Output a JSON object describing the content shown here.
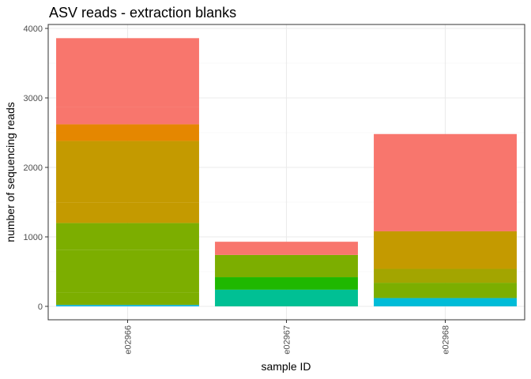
{
  "chart_data": {
    "type": "bar",
    "stacked": true,
    "title": "ASV reads - extraction blanks",
    "xlabel": "sample ID",
    "ylabel": "number of sequencing reads",
    "categories": [
      "e02966",
      "e02967",
      "e02968"
    ],
    "ylim": [
      0,
      4000
    ],
    "yticks": [
      "0",
      "1000",
      "2000",
      "3000",
      "4000"
    ],
    "grid": true,
    "legend": "none",
    "stacks": [
      [
        {
          "value": 20,
          "color": "#00B4F0"
        },
        {
          "value": 180,
          "color": "#7CAE00"
        },
        {
          "value": 610,
          "color": "#7CAE00"
        },
        {
          "value": 390,
          "color": "#7CAE00"
        },
        {
          "value": 290,
          "color": "#C49A00"
        },
        {
          "value": 890,
          "color": "#C49A00"
        },
        {
          "value": 240,
          "color": "#E58700"
        },
        {
          "value": 250,
          "color": "#F8766D"
        },
        {
          "value": 990,
          "color": "#F8766D"
        }
      ],
      [
        {
          "value": 240,
          "color": "#00C094"
        },
        {
          "value": 180,
          "color": "#1FB800"
        },
        {
          "value": 320,
          "color": "#7CAE00"
        },
        {
          "value": 190,
          "color": "#F8766D"
        }
      ],
      [
        {
          "value": 120,
          "color": "#00BCD8"
        },
        {
          "value": 220,
          "color": "#7CAE00"
        },
        {
          "value": 200,
          "color": "#A3A500"
        },
        {
          "value": 540,
          "color": "#C49A00"
        },
        {
          "value": 1400,
          "color": "#F8766D"
        }
      ]
    ]
  }
}
